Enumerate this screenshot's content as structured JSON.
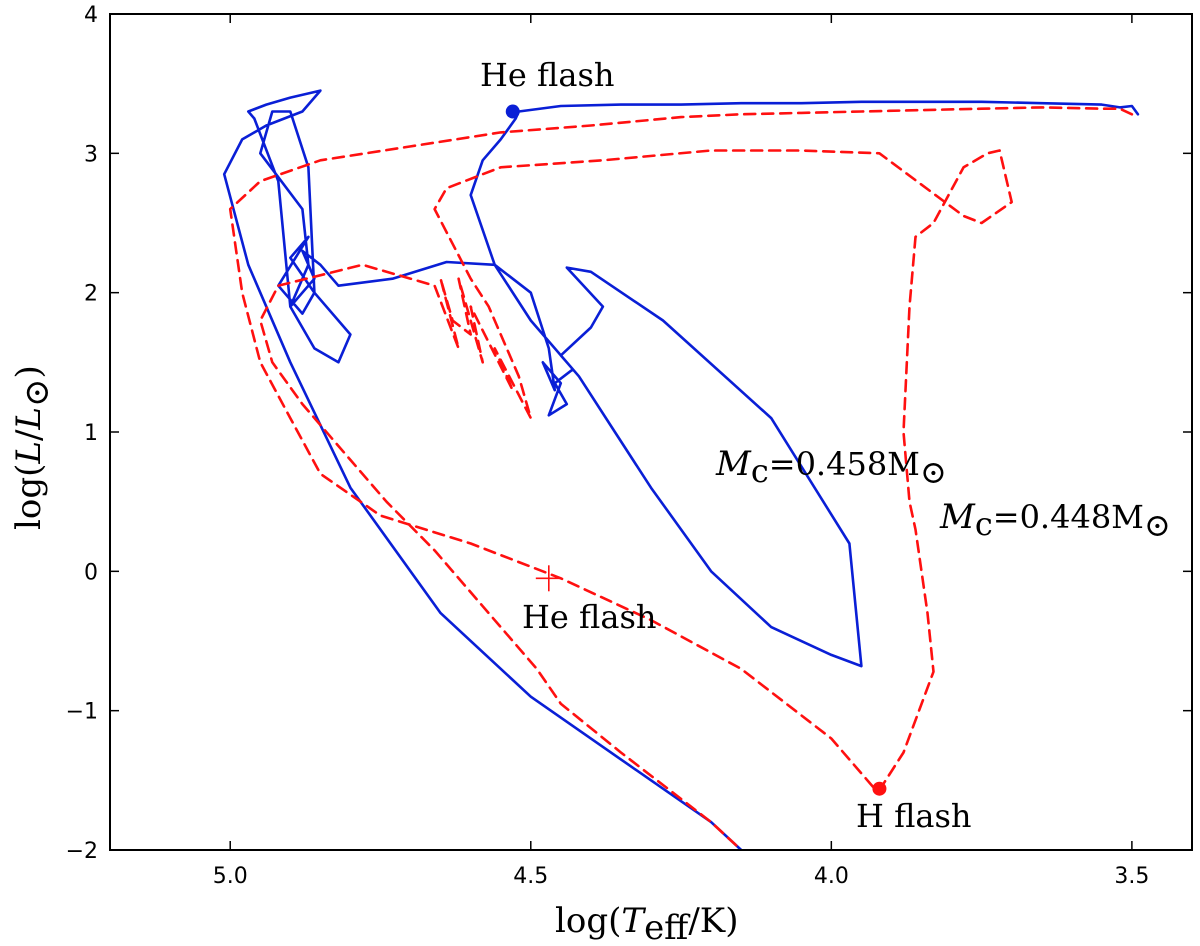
{
  "chart_data": {
    "type": "line",
    "title": "",
    "xlabel": "log(T_eff/K)",
    "ylabel": "log(L/L_⊙)",
    "xlim": [
      5.2,
      3.4
    ],
    "ylim": [
      -2,
      4
    ],
    "x_ticks": [
      5.0,
      4.5,
      4.0,
      3.5
    ],
    "x_tick_labels": [
      "5.0",
      "4.5",
      "4.0",
      "3.5"
    ],
    "y_ticks": [
      -2,
      -1,
      0,
      1,
      2,
      3,
      4
    ],
    "y_tick_labels": [
      "−2",
      "−1",
      "0",
      "1",
      "2",
      "3",
      "4"
    ],
    "grid": false,
    "xlabel_parts": {
      "log": "log(",
      "var": "T",
      "sub": "eff",
      "rest": "/K)"
    },
    "ylabel_parts": {
      "log": "log(",
      "var1": "L",
      "slash": "/",
      "var2": "L",
      "sun": "⊙",
      "close": ")"
    },
    "series": [
      {
        "name": "M_c = 0.458 M_⊙",
        "color": "#0a1fd6",
        "style": "solid",
        "x": [
          3.49,
          3.5,
          3.52,
          3.55,
          3.65,
          3.75,
          3.85,
          3.95,
          4.05,
          4.15,
          4.25,
          4.35,
          4.45,
          4.52,
          4.525,
          4.55,
          4.58,
          4.6,
          4.56,
          4.5,
          4.42,
          4.36,
          4.3,
          4.2,
          4.1,
          4.0,
          3.95,
          3.97,
          4.1,
          4.28,
          4.4,
          4.44,
          4.38,
          4.4,
          4.45,
          4.43,
          4.46,
          4.44,
          4.47,
          4.45,
          4.48,
          4.46,
          4.47,
          4.5,
          4.56,
          4.64,
          4.73,
          4.82,
          4.85,
          4.88,
          4.86,
          4.9,
          4.86,
          4.82,
          4.8,
          4.86,
          4.9,
          4.87,
          4.92,
          4.88,
          4.86,
          4.87,
          4.9,
          4.93,
          4.95,
          4.88,
          4.87,
          4.9,
          4.92,
          4.96,
          4.97,
          4.94,
          4.9,
          4.85,
          4.88,
          4.94,
          4.98,
          5.01,
          4.97,
          4.9,
          4.8,
          4.65,
          4.5,
          4.35,
          4.2,
          4.15
        ],
        "y": [
          3.28,
          3.34,
          3.33,
          3.35,
          3.36,
          3.37,
          3.37,
          3.37,
          3.36,
          3.36,
          3.35,
          3.35,
          3.34,
          3.3,
          3.25,
          3.1,
          2.95,
          2.7,
          2.2,
          1.8,
          1.4,
          1.0,
          0.6,
          0.0,
          -0.4,
          -0.6,
          -0.68,
          0.2,
          1.1,
          1.8,
          2.15,
          2.18,
          1.9,
          1.75,
          1.55,
          1.45,
          1.35,
          1.2,
          1.12,
          1.35,
          1.5,
          1.3,
          1.6,
          2.0,
          2.2,
          2.22,
          2.1,
          2.05,
          2.2,
          2.3,
          2.1,
          1.9,
          1.6,
          1.5,
          1.7,
          2.0,
          2.25,
          2.4,
          2.05,
          1.85,
          2.0,
          2.9,
          3.3,
          3.3,
          3.0,
          2.6,
          2.2,
          1.9,
          2.8,
          3.25,
          3.3,
          3.35,
          3.4,
          3.45,
          3.3,
          3.2,
          3.1,
          2.85,
          2.2,
          1.5,
          0.6,
          -0.3,
          -0.9,
          -1.35,
          -1.8,
          -2.0
        ]
      },
      {
        "name": "M_c = 0.448 M_⊙",
        "color": "#ff1010",
        "style": "dashed",
        "x": [
          3.5,
          3.52,
          3.55,
          3.65,
          3.75,
          3.85,
          3.95,
          4.05,
          4.15,
          4.25,
          4.4,
          4.55,
          4.7,
          4.85,
          4.95,
          5.0,
          4.98,
          4.95,
          4.9,
          4.85,
          4.75,
          4.6,
          4.45,
          4.3,
          4.15,
          4.0,
          3.93,
          3.92,
          3.88,
          3.83,
          3.84,
          3.86,
          3.87,
          3.88,
          3.87,
          3.86,
          3.83,
          3.78,
          3.74,
          3.72,
          3.7,
          3.75,
          3.78,
          3.92,
          4.05,
          4.2,
          4.38,
          4.55,
          4.64,
          4.66,
          4.6,
          4.57,
          4.52,
          4.5,
          4.56,
          4.53,
          4.6,
          4.58,
          4.62,
          4.6,
          4.63,
          4.65,
          4.62,
          4.66,
          4.7,
          4.78,
          4.92,
          4.95,
          4.93,
          4.88,
          4.8,
          4.74,
          4.66,
          4.58,
          4.49,
          4.45,
          4.35,
          4.2,
          4.15
        ],
        "y": [
          3.28,
          3.32,
          3.32,
          3.33,
          3.32,
          3.31,
          3.3,
          3.29,
          3.28,
          3.26,
          3.2,
          3.15,
          3.05,
          2.95,
          2.8,
          2.6,
          2.0,
          1.5,
          1.1,
          0.7,
          0.4,
          0.2,
          -0.05,
          -0.35,
          -0.7,
          -1.2,
          -1.55,
          -1.57,
          -1.3,
          -0.72,
          -0.3,
          0.3,
          0.5,
          1.0,
          1.9,
          2.4,
          2.5,
          2.9,
          3.0,
          3.02,
          2.65,
          2.5,
          2.55,
          3.0,
          3.02,
          3.02,
          2.95,
          2.9,
          2.75,
          2.6,
          2.1,
          1.9,
          1.4,
          1.1,
          1.6,
          1.3,
          1.9,
          1.5,
          2.1,
          1.7,
          1.8,
          2.1,
          1.6,
          2.05,
          2.1,
          2.2,
          2.05,
          1.8,
          1.5,
          1.2,
          0.8,
          0.5,
          0.15,
          -0.25,
          -0.7,
          -0.95,
          -1.3,
          -1.8,
          -2.0
        ]
      }
    ],
    "markers": [
      {
        "name": "He flash (blue track)",
        "x": 4.53,
        "y": 3.3,
        "shape": "circle",
        "color": "#0a1fd6"
      },
      {
        "name": "He flash (red track)",
        "x": 4.47,
        "y": -0.05,
        "shape": "plus",
        "color": "#ff1010"
      },
      {
        "name": "H flash",
        "x": 3.92,
        "y": -1.56,
        "shape": "circle",
        "color": "#ff1010"
      }
    ],
    "annotations": {
      "he_flash_top": "He flash",
      "he_flash_mid": "He flash",
      "h_flash": "H flash",
      "mc_blue": {
        "var": "M",
        "sub": "c",
        "eq": "=0.458M",
        "sun": "⊙"
      },
      "mc_red": {
        "var": "M",
        "sub": "c",
        "eq": "=0.448M",
        "sun": "⊙"
      }
    }
  }
}
